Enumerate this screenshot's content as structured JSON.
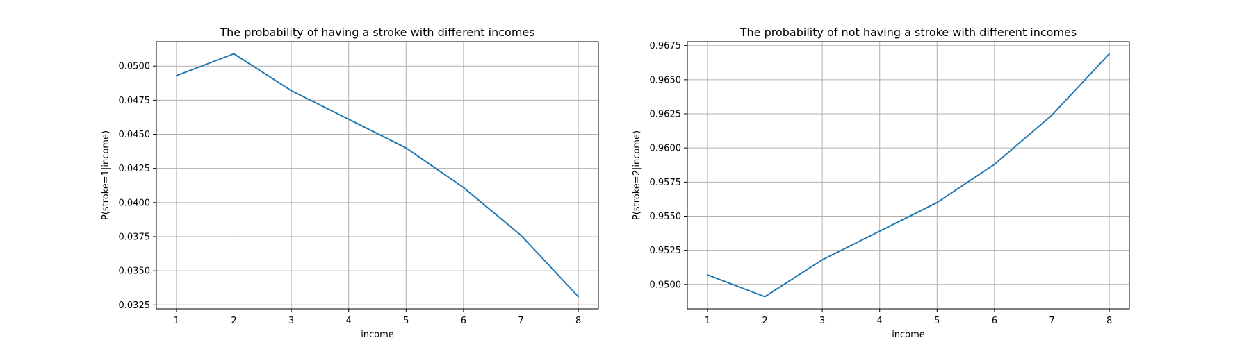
{
  "chart_data": [
    {
      "type": "line",
      "title": "The probability of having a stroke with different incomes",
      "xlabel": "income",
      "ylabel": "P(stroke=1|income)",
      "x": [
        1,
        2,
        3,
        4,
        5,
        6,
        7,
        8
      ],
      "series": [
        {
          "values": [
            0.0493,
            0.0509,
            0.0482,
            0.0461,
            0.044,
            0.0411,
            0.0376,
            0.0331
          ],
          "color": "#1f77b4"
        }
      ],
      "xticks": [
        "1",
        "2",
        "3",
        "4",
        "5",
        "6",
        "7",
        "8"
      ],
      "yticks": [
        0.0325,
        0.035,
        0.0375,
        0.04,
        0.0425,
        0.045,
        0.0475,
        0.05
      ],
      "ytick_labels": [
        "0.0325",
        "0.0350",
        "0.0375",
        "0.0400",
        "0.0425",
        "0.0450",
        "0.0475",
        "0.0500"
      ],
      "xlim": [
        0.65,
        8.35
      ],
      "ylim": [
        0.03221,
        0.05179
      ],
      "grid": true
    },
    {
      "type": "line",
      "title": "The probability of not having a stroke with different incomes",
      "xlabel": "income",
      "ylabel": "P(stroke=2|income)",
      "x": [
        1,
        2,
        3,
        4,
        5,
        6,
        7,
        8
      ],
      "series": [
        {
          "values": [
            0.9507,
            0.9491,
            0.9518,
            0.9539,
            0.956,
            0.9588,
            0.9624,
            0.9669
          ],
          "color": "#1f77b4"
        }
      ],
      "xticks": [
        "1",
        "2",
        "3",
        "4",
        "5",
        "6",
        "7",
        "8"
      ],
      "yticks": [
        0.95,
        0.9525,
        0.955,
        0.9575,
        0.96,
        0.9625,
        0.965,
        0.9675
      ],
      "ytick_labels": [
        "0.9500",
        "0.9525",
        "0.9550",
        "0.9575",
        "0.9600",
        "0.9625",
        "0.9650",
        "0.9675"
      ],
      "xlim": [
        0.65,
        8.35
      ],
      "ylim": [
        0.94821,
        0.96779
      ],
      "grid": true
    }
  ]
}
